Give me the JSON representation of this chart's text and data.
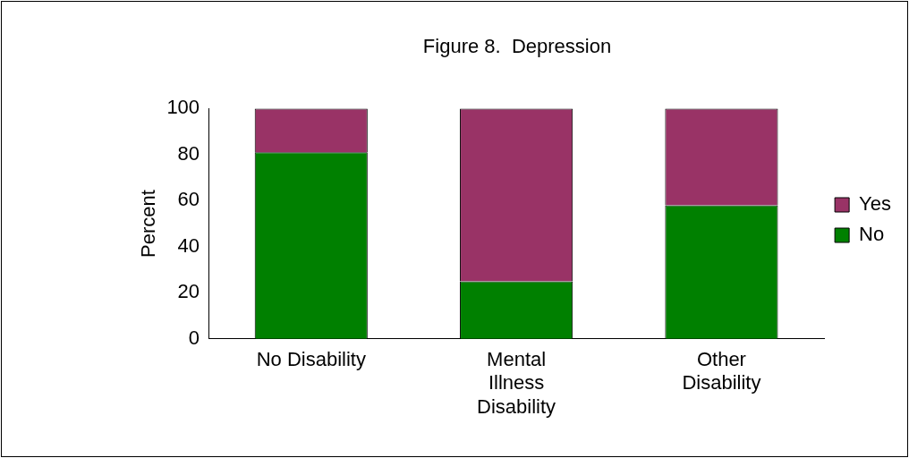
{
  "chart_data": {
    "type": "bar",
    "title": "Figure 8.  Depression",
    "ylabel": "Percent",
    "categories": [
      "No Disability",
      "Mental\nIllness\nDisability",
      "Other\nDisability"
    ],
    "stacked": true,
    "series": [
      {
        "name": "No",
        "color": "#008000",
        "values": [
          81,
          25,
          58
        ]
      },
      {
        "name": "Yes",
        "color": "#993366",
        "values": [
          19,
          75,
          42
        ]
      }
    ],
    "ylim": [
      0,
      100
    ],
    "yticks": [
      0,
      20,
      40,
      60,
      80,
      100
    ],
    "grid": false,
    "legend": "right"
  }
}
